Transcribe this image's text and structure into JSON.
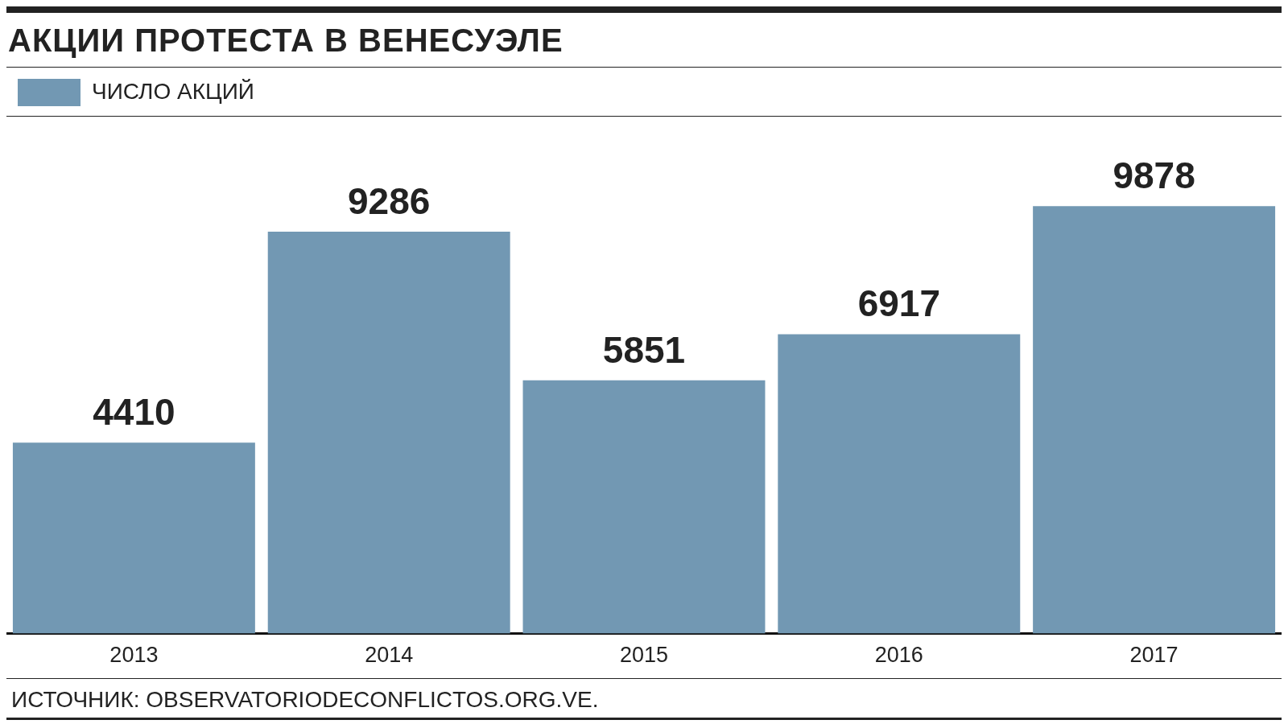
{
  "chart_data": {
    "type": "bar",
    "title": "АКЦИИ ПРОТЕСТА В ВЕНЕСУЭЛЕ",
    "categories": [
      "2013",
      "2014",
      "2015",
      "2016",
      "2017"
    ],
    "series": [
      {
        "name": "ЧИСЛО АКЦИЙ",
        "color": "#7298b3",
        "values": [
          4410,
          9286,
          5851,
          6917,
          9878
        ]
      }
    ],
    "data_labels": true,
    "legend": "top left",
    "grid": false,
    "annotations": [
      "ИСТОЧНИК: OBSERVATORIODECONFLICTOS.ORG.VE."
    ]
  }
}
